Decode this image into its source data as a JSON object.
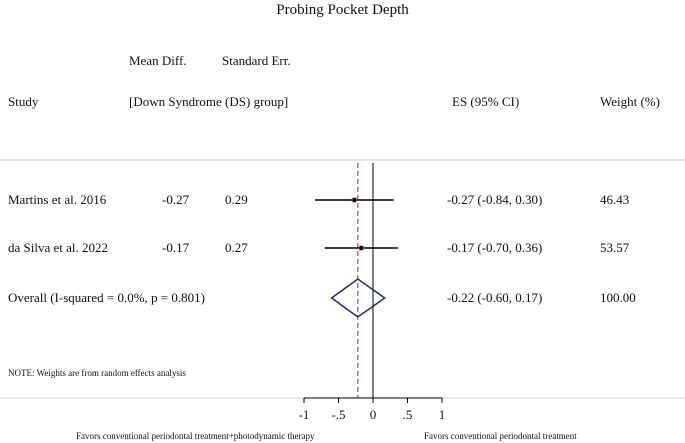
{
  "chart_data": {
    "type": "forest",
    "title": "Probing Pocket Depth",
    "column_headers": {
      "mean_diff": "Mean Diff.",
      "standard_err": "Standard Err.",
      "study": "Study",
      "group": "[Down Syndrome (DS) group]",
      "es": "ES (95% CI)",
      "weight": "Weight (%)"
    },
    "studies": [
      {
        "name": "Martins et al. 2016",
        "mean_diff": "-0.27",
        "se": "0.29",
        "es_text": "-0.27 (-0.84, 0.30)",
        "weight": "46.43",
        "es": -0.27,
        "lo": -0.84,
        "hi": 0.3
      },
      {
        "name": "da Silva et al. 2022",
        "mean_diff": "-0.17",
        "se": "0.27",
        "es_text": "-0.17 (-0.70, 0.36)",
        "weight": "53.57",
        "es": -0.17,
        "lo": -0.7,
        "hi": 0.36
      }
    ],
    "overall": {
      "label": "Overall  (I-squared = 0.0%, p = 0.801)",
      "es_text": "-0.22 (-0.60, 0.17)",
      "weight": "100.00",
      "es": -0.22,
      "lo": -0.6,
      "hi": 0.17
    },
    "note": "NOTE: Weights are from random effects analysis",
    "x_ticks": [
      -1,
      -0.5,
      0,
      0.5,
      1
    ],
    "x_tick_labels": [
      "-1",
      "-.5",
      "0",
      ".5",
      "1"
    ],
    "xlim": [
      -1,
      1
    ],
    "favors_left": "Favors conventional periodontal treatment+photodynamic therapy",
    "favors_right": "Favors conventional periodontal treatment",
    "colors": {
      "diamond": "#1f2a7a",
      "overall_line": "#b22222",
      "ci": "#000000"
    }
  }
}
